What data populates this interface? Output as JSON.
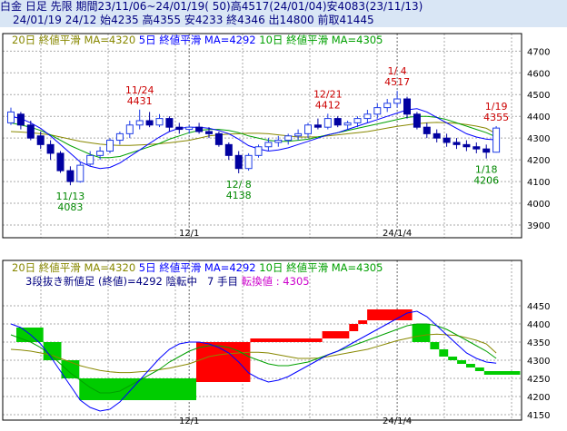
{
  "header": {
    "line1": "白金 日足 先限 期間23/11/06~24/01/19( 50)高4517(24/01/04)安4083(23/11/13)",
    "line2": "24/01/19 24/12 始4235 高4355 安4233 終4346 出14800 前取41445"
  },
  "legend_top": {
    "ma20": "20日 終値平滑 MA=4320",
    "ma5": "5日 終値平滑 MA=4292",
    "ma10": "10日 終値平滑 MA=4305"
  },
  "legend_bottom": {
    "ma20": "20日 終値平滑 MA=4320",
    "ma5": "5日 終値平滑 MA=4292",
    "ma10": "10日 終値平滑 MA=4305",
    "kagi_a": "3段抜き新値足 (終値)=4292",
    "kagi_b": "陰転中",
    "kagi_c": "7 手目",
    "kagi_d": "転換値 : 4305"
  },
  "colors": {
    "up": "#1e3ce6",
    "down": "#0000a0",
    "ma20": "#888800",
    "ma5": "#0000ff",
    "ma10": "#00a000",
    "kagi_up": "#ff0000",
    "kagi_down": "#00cc00",
    "label_high": "#cc0000",
    "label_low": "#008800"
  },
  "chart_data": [
    {
      "type": "candlestick",
      "title": "白金 日足 先限",
      "x_tick_labels": [
        "12/1",
        "24/1/4"
      ],
      "x_tick_index": [
        18,
        39
      ],
      "ylim": [
        3900,
        4750
      ],
      "y_ticks": [
        3900,
        4000,
        4100,
        4200,
        4300,
        4400,
        4500,
        4600,
        4700
      ],
      "grid": true,
      "candles": [
        {
          "o": 4370,
          "h": 4440,
          "l": 4360,
          "c": 4420
        },
        {
          "o": 4410,
          "h": 4420,
          "l": 4340,
          "c": 4360
        },
        {
          "o": 4360,
          "h": 4380,
          "l": 4290,
          "c": 4300
        },
        {
          "o": 4310,
          "h": 4330,
          "l": 4250,
          "c": 4270
        },
        {
          "o": 4270,
          "h": 4290,
          "l": 4200,
          "c": 4230
        },
        {
          "o": 4230,
          "h": 4240,
          "l": 4140,
          "c": 4150
        },
        {
          "o": 4150,
          "h": 4170,
          "l": 4083,
          "c": 4100
        },
        {
          "o": 4100,
          "h": 4190,
          "l": 4095,
          "c": 4175
        },
        {
          "o": 4180,
          "h": 4240,
          "l": 4170,
          "c": 4220
        },
        {
          "o": 4220,
          "h": 4260,
          "l": 4200,
          "c": 4240
        },
        {
          "o": 4240,
          "h": 4300,
          "l": 4230,
          "c": 4290
        },
        {
          "o": 4290,
          "h": 4330,
          "l": 4270,
          "c": 4320
        },
        {
          "o": 4320,
          "h": 4380,
          "l": 4300,
          "c": 4360
        },
        {
          "o": 4360,
          "h": 4431,
          "l": 4340,
          "c": 4380
        },
        {
          "o": 4380,
          "h": 4420,
          "l": 4350,
          "c": 4360
        },
        {
          "o": 4360,
          "h": 4410,
          "l": 4350,
          "c": 4390
        },
        {
          "o": 4390,
          "h": 4400,
          "l": 4330,
          "c": 4350
        },
        {
          "o": 4350,
          "h": 4370,
          "l": 4320,
          "c": 4340
        },
        {
          "o": 4340,
          "h": 4360,
          "l": 4320,
          "c": 4350
        },
        {
          "o": 4350,
          "h": 4370,
          "l": 4320,
          "c": 4330
        },
        {
          "o": 4330,
          "h": 4350,
          "l": 4300,
          "c": 4320
        },
        {
          "o": 4320,
          "h": 4330,
          "l": 4260,
          "c": 4270
        },
        {
          "o": 4270,
          "h": 4280,
          "l": 4200,
          "c": 4220
        },
        {
          "o": 4220,
          "h": 4240,
          "l": 4138,
          "c": 4160
        },
        {
          "o": 4160,
          "h": 4230,
          "l": 4150,
          "c": 4220
        },
        {
          "o": 4220,
          "h": 4270,
          "l": 4210,
          "c": 4260
        },
        {
          "o": 4260,
          "h": 4300,
          "l": 4240,
          "c": 4280
        },
        {
          "o": 4280,
          "h": 4310,
          "l": 4260,
          "c": 4290
        },
        {
          "o": 4290,
          "h": 4320,
          "l": 4270,
          "c": 4310
        },
        {
          "o": 4310,
          "h": 4340,
          "l": 4290,
          "c": 4320
        },
        {
          "o": 4320,
          "h": 4370,
          "l": 4300,
          "c": 4360
        },
        {
          "o": 4360,
          "h": 4390,
          "l": 4340,
          "c": 4350
        },
        {
          "o": 4350,
          "h": 4412,
          "l": 4340,
          "c": 4390
        },
        {
          "o": 4390,
          "h": 4400,
          "l": 4350,
          "c": 4360
        },
        {
          "o": 4360,
          "h": 4380,
          "l": 4340,
          "c": 4370
        },
        {
          "o": 4370,
          "h": 4400,
          "l": 4350,
          "c": 4390
        },
        {
          "o": 4390,
          "h": 4430,
          "l": 4370,
          "c": 4410
        },
        {
          "o": 4410,
          "h": 4460,
          "l": 4390,
          "c": 4440
        },
        {
          "o": 4440,
          "h": 4480,
          "l": 4420,
          "c": 4460
        },
        {
          "o": 4460,
          "h": 4517,
          "l": 4440,
          "c": 4480
        },
        {
          "o": 4480,
          "h": 4490,
          "l": 4390,
          "c": 4410
        },
        {
          "o": 4410,
          "h": 4420,
          "l": 4340,
          "c": 4350
        },
        {
          "o": 4350,
          "h": 4370,
          "l": 4300,
          "c": 4320
        },
        {
          "o": 4320,
          "h": 4340,
          "l": 4280,
          "c": 4300
        },
        {
          "o": 4300,
          "h": 4320,
          "l": 4260,
          "c": 4280
        },
        {
          "o": 4280,
          "h": 4300,
          "l": 4250,
          "c": 4270
        },
        {
          "o": 4270,
          "h": 4290,
          "l": 4240,
          "c": 4260
        },
        {
          "o": 4260,
          "h": 4280,
          "l": 4230,
          "c": 4250
        },
        {
          "o": 4250,
          "h": 4270,
          "l": 4206,
          "c": 4235
        },
        {
          "o": 4235,
          "h": 4355,
          "l": 4233,
          "c": 4346
        }
      ],
      "ma20": [
        4330,
        4328,
        4325,
        4320,
        4315,
        4305,
        4295,
        4285,
        4278,
        4272,
        4268,
        4266,
        4266,
        4268,
        4270,
        4274,
        4278,
        4284,
        4290,
        4300,
        4310,
        4315,
        4318,
        4320,
        4322,
        4322,
        4320,
        4315,
        4310,
        4305,
        4305,
        4306,
        4310,
        4315,
        4320,
        4325,
        4330,
        4338,
        4346,
        4354,
        4360,
        4366,
        4370,
        4372,
        4370,
        4368,
        4362,
        4355,
        4345,
        4320
      ],
      "ma5": [
        4400,
        4390,
        4370,
        4345,
        4310,
        4270,
        4230,
        4190,
        4170,
        4160,
        4165,
        4185,
        4215,
        4245,
        4275,
        4305,
        4330,
        4345,
        4350,
        4350,
        4345,
        4335,
        4320,
        4295,
        4265,
        4250,
        4240,
        4245,
        4255,
        4270,
        4285,
        4300,
        4315,
        4325,
        4340,
        4355,
        4370,
        4385,
        4400,
        4415,
        4430,
        4435,
        4420,
        4395,
        4370,
        4345,
        4320,
        4305,
        4295,
        4292
      ],
      "ma10": [
        4370,
        4360,
        4350,
        4335,
        4315,
        4290,
        4265,
        4245,
        4225,
        4210,
        4210,
        4215,
        4230,
        4245,
        4260,
        4275,
        4295,
        4310,
        4325,
        4335,
        4340,
        4340,
        4335,
        4325,
        4310,
        4300,
        4290,
        4285,
        4285,
        4290,
        4295,
        4305,
        4315,
        4325,
        4335,
        4345,
        4355,
        4365,
        4375,
        4385,
        4395,
        4400,
        4400,
        4395,
        4385,
        4370,
        4355,
        4340,
        4325,
        4305
      ],
      "annotations": [
        {
          "text": "11/24",
          "value": "4431",
          "kind": "high",
          "index": 13
        },
        {
          "text": "12/21",
          "value": "4412",
          "kind": "high",
          "index": 32
        },
        {
          "text": "1/ 4",
          "value": "4517",
          "kind": "high",
          "index": 39
        },
        {
          "text": "1/19",
          "value": "4355",
          "kind": "high",
          "index": 49
        },
        {
          "text": "11/13",
          "value": "4083",
          "kind": "low",
          "index": 6
        },
        {
          "text": "12/ 8",
          "value": "4138",
          "kind": "low",
          "index": 23
        },
        {
          "text": "1/18",
          "value": "4206",
          "kind": "low",
          "index": 48
        }
      ]
    },
    {
      "type": "bar",
      "title": "3段抜き新値足 (終値)",
      "ylim": [
        4150,
        4500
      ],
      "y_ticks": [
        4150,
        4200,
        4250,
        4300,
        4350,
        4400,
        4450
      ],
      "grid": true,
      "boxes": [
        {
          "from": 4390,
          "to": 4350,
          "dir": "down",
          "start": 0,
          "end": 3
        },
        {
          "from": 4350,
          "to": 4300,
          "dir": "down",
          "start": 3,
          "end": 5
        },
        {
          "from": 4300,
          "to": 4250,
          "dir": "down",
          "start": 5,
          "end": 7
        },
        {
          "from": 4250,
          "to": 4190,
          "dir": "down",
          "start": 7,
          "end": 20
        },
        {
          "from": 4240,
          "to": 4350,
          "dir": "up",
          "start": 20,
          "end": 26
        },
        {
          "from": 4350,
          "to": 4360,
          "dir": "up",
          "start": 26,
          "end": 34
        },
        {
          "from": 4360,
          "to": 4380,
          "dir": "up",
          "start": 34,
          "end": 37
        },
        {
          "from": 4380,
          "to": 4400,
          "dir": "up",
          "start": 37,
          "end": 38
        },
        {
          "from": 4400,
          "to": 4410,
          "dir": "up",
          "start": 38,
          "end": 39
        },
        {
          "from": 4410,
          "to": 4440,
          "dir": "up",
          "start": 39,
          "end": 44
        },
        {
          "from": 4400,
          "to": 4350,
          "dir": "down",
          "start": 44,
          "end": 46
        },
        {
          "from": 4350,
          "to": 4330,
          "dir": "down",
          "start": 46,
          "end": 47
        },
        {
          "from": 4330,
          "to": 4310,
          "dir": "down",
          "start": 47,
          "end": 48
        },
        {
          "from": 4310,
          "to": 4300,
          "dir": "down",
          "start": 48,
          "end": 49
        },
        {
          "from": 4300,
          "to": 4290,
          "dir": "down",
          "start": 49,
          "end": 50
        },
        {
          "from": 4290,
          "to": 4280,
          "dir": "down",
          "start": 50,
          "end": 51
        },
        {
          "from": 4280,
          "to": 4270,
          "dir": "down",
          "start": 51,
          "end": 52
        },
        {
          "from": 4270,
          "to": 4260,
          "dir": "down",
          "start": 52,
          "end": 56
        }
      ]
    }
  ]
}
